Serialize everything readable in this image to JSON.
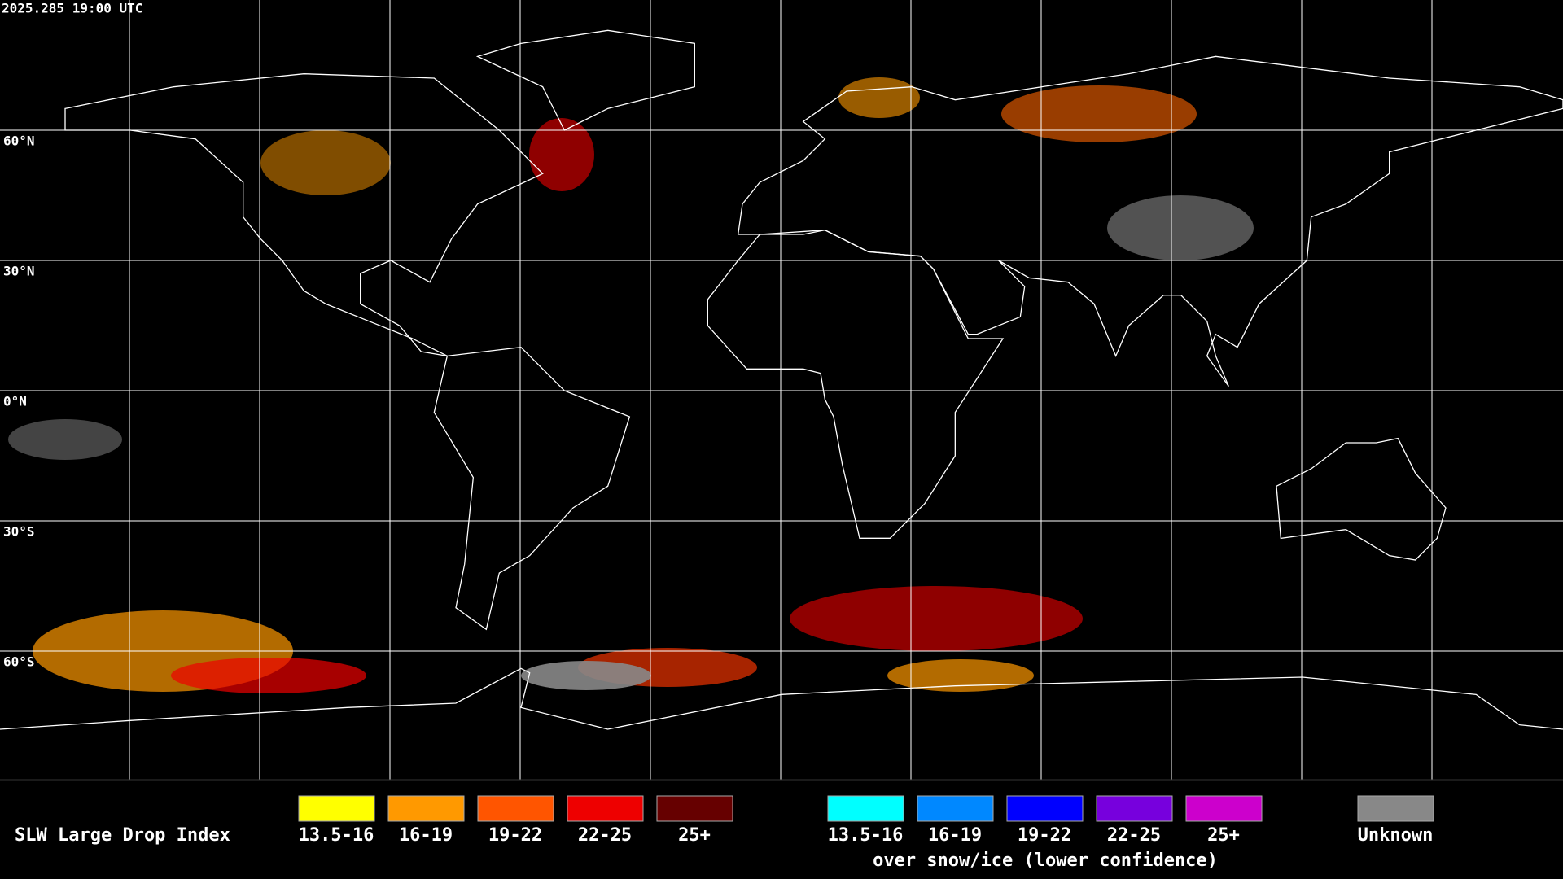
{
  "header": {
    "timestamp": "2025.285 19:00 UTC"
  },
  "latitude_labels": [
    "60°N",
    "30°N",
    "0°N",
    "30°S",
    "60°S"
  ],
  "legend": {
    "title": "SLW Large Drop Index",
    "items": [
      {
        "label": "13.5-16",
        "color": "#ffff00"
      },
      {
        "label": "16-19",
        "color": "#ff9900"
      },
      {
        "label": "19-22",
        "color": "#ff5500"
      },
      {
        "label": "22-25",
        "color": "#ee0000"
      },
      {
        "label": "25+",
        "color": "#660000"
      }
    ],
    "snow_items": [
      {
        "label": "13.5-16",
        "color": "#00ffff"
      },
      {
        "label": "16-19",
        "color": "#0088ff"
      },
      {
        "label": "19-22",
        "color": "#0000ff"
      },
      {
        "label": "22-25",
        "color": "#7700dd"
      },
      {
        "label": "25+",
        "color": "#cc00cc"
      }
    ],
    "snow_note": "over snow/ice (lower confidence)",
    "unknown": {
      "label": "Unknown",
      "color": "#888888"
    }
  }
}
